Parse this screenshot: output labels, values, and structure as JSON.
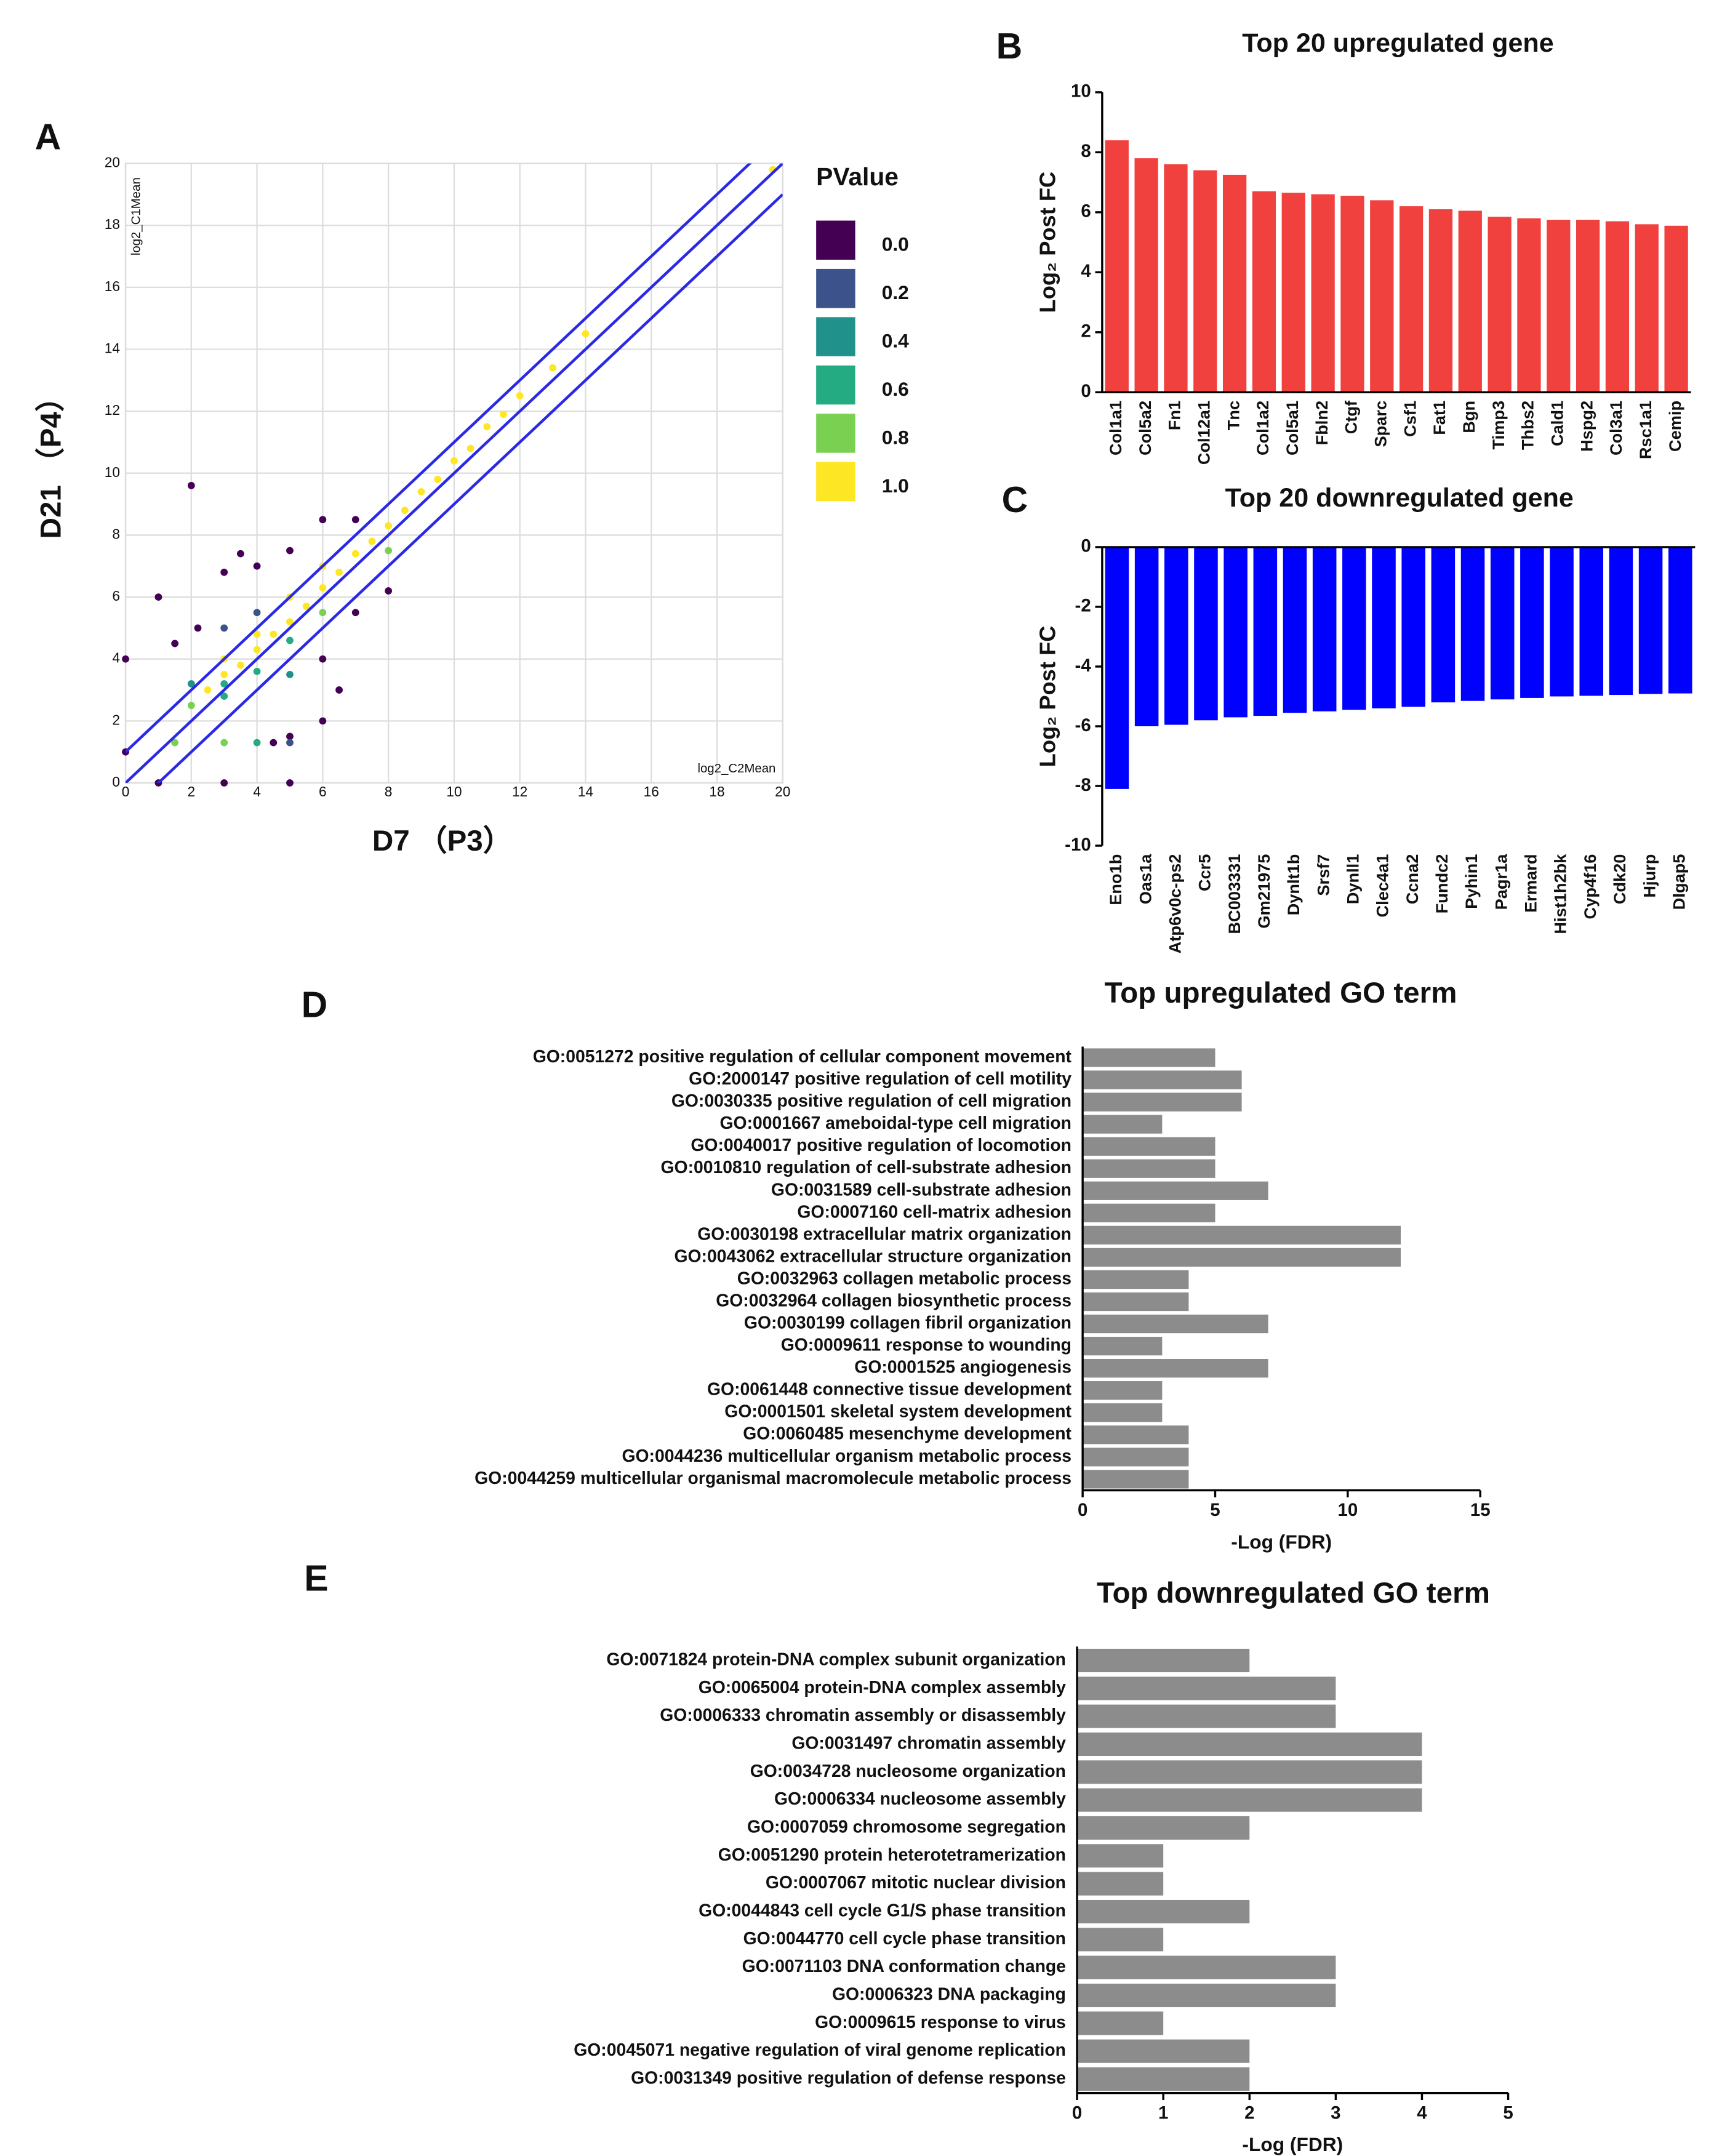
{
  "chart_data": [
    {
      "type": "scatter",
      "panel": "A",
      "x_label": "D7 （P3）",
      "y_label": "D21 （P4）",
      "inner_x_label": "log2_C2Mean",
      "inner_y_label": "log2_C1Mean",
      "xlim": [
        0,
        20
      ],
      "ylim": [
        0,
        20
      ],
      "xticks": [
        0,
        2,
        4,
        6,
        8,
        10,
        12,
        14,
        16,
        18,
        20
      ],
      "yticks": [
        0,
        2,
        4,
        6,
        8,
        10,
        12,
        14,
        16,
        18,
        20
      ],
      "grid": true,
      "reference_lines": [
        {
          "offset": 1,
          "color": "#2a2ae6"
        },
        {
          "offset": 0,
          "color": "#2a2ae6"
        },
        {
          "offset": -1,
          "color": "#2a2ae6"
        }
      ],
      "colorbar": {
        "title": "PValue",
        "ticks": [
          {
            "value": 0,
            "label": "0.0"
          },
          0.2,
          0.4,
          0.6,
          0.8,
          {
            "value": 1,
            "label": "1.0"
          }
        ],
        "colors": [
          "#440154",
          "#3b528b",
          "#21918c",
          "#25ab82",
          "#7ad151",
          "#fde725"
        ]
      },
      "series": [
        {
          "x": [
            3,
            3.5,
            4,
            4.5,
            5,
            5.5,
            6,
            6.5,
            7,
            7.5,
            8,
            8.5,
            9,
            9.5,
            10,
            10.5,
            11,
            11.5,
            12,
            13,
            14,
            19.7,
            4,
            5,
            6,
            3,
            2.5,
            3,
            4,
            5,
            6,
            2,
            8,
            3,
            2,
            1,
            2.2,
            3,
            4,
            5,
            6,
            6.5,
            7,
            5,
            6,
            4.5,
            3.5,
            1.5,
            6,
            0,
            0,
            7,
            8,
            2,
            4,
            5,
            3,
            1.5,
            3,
            4,
            5,
            1,
            3,
            5
          ],
          "y": [
            3.5,
            3.8,
            4.3,
            4.8,
            5.2,
            5.7,
            6.3,
            6.8,
            7.4,
            7.8,
            8.3,
            8.8,
            9.4,
            9.8,
            10.4,
            10.8,
            11.5,
            11.9,
            12.5,
            13.4,
            14.5,
            19.8,
            4.8,
            6,
            7,
            4,
            3,
            2.8,
            3.6,
            4.6,
            5.5,
            2.5,
            7.5,
            3.2,
            9.6,
            6,
            5,
            6.8,
            7,
            7.5,
            4,
            3,
            8.5,
            1.5,
            2,
            1.3,
            7.4,
            4.5,
            8.5,
            4,
            1,
            5.5,
            6.2,
            3.2,
            5.5,
            3.5,
            5,
            1.3,
            1.3,
            1.3,
            1.3,
            0,
            0,
            0
          ],
          "pvalue": [
            1,
            1,
            1,
            1,
            1,
            1,
            1,
            1,
            1,
            1,
            1,
            1,
            1,
            1,
            1,
            1,
            1,
            1,
            1,
            1,
            1,
            1,
            1,
            1,
            1,
            1,
            1,
            0.6,
            0.6,
            0.6,
            0.8,
            0.8,
            0.8,
            0.6,
            0,
            0,
            0,
            0,
            0,
            0,
            0,
            0,
            0,
            0,
            0,
            0,
            0,
            0,
            0,
            0,
            0,
            0,
            0,
            0.4,
            0.2,
            0.4,
            0.2,
            0.8,
            0.8,
            0.6,
            0.2,
            0,
            0,
            0
          ]
        }
      ]
    },
    {
      "type": "bar",
      "panel": "B",
      "title": "Top 20 upregulated gene",
      "y_label": "Log₂ Post FC",
      "color": "#f0413f",
      "categories": [
        "Col1a1",
        "Col5a2",
        "Fn1",
        "Col12a1",
        "Tnc",
        "Col1a2",
        "Col5a1",
        "Fbln2",
        "Ctgf",
        "Sparc",
        "Csf1",
        "Fat1",
        "Bgn",
        "Timp3",
        "Thbs2",
        "Cald1",
        "Hspg2",
        "Col3a1",
        "Rsc1a1",
        "Cemip"
      ],
      "values": [
        8.4,
        7.8,
        7.6,
        7.4,
        7.25,
        6.7,
        6.65,
        6.6,
        6.55,
        6.4,
        6.2,
        6.1,
        6.05,
        5.85,
        5.8,
        5.75,
        5.75,
        5.7,
        5.6,
        5.55
      ],
      "ylim": [
        0,
        10
      ],
      "yticks": [
        0,
        2,
        4,
        6,
        8,
        10
      ]
    },
    {
      "type": "bar",
      "panel": "C",
      "title": "Top 20 downregulated gene",
      "y_label": "Log₂ Post FC",
      "color": "#0000ff",
      "categories": [
        "Eno1b",
        "Oas1a",
        "Atp6v0c-ps2",
        "Ccr5",
        "BC003331",
        "Gm21975",
        "Dynlt1b",
        "Srsf7",
        "Dynll1",
        "Clec4a1",
        "Ccna2",
        "Fundc2",
        "Pyhin1",
        "Pagr1a",
        "Ermard",
        "Hist1h2bk",
        "Cyp4f16",
        "Cdk20",
        "Hjurp",
        "Dlgap5"
      ],
      "values": [
        -8.1,
        -6.0,
        -5.95,
        -5.8,
        -5.7,
        -5.65,
        -5.55,
        -5.5,
        -5.45,
        -5.4,
        -5.35,
        -5.2,
        -5.15,
        -5.1,
        -5.05,
        -5.0,
        -4.98,
        -4.95,
        -4.92,
        -4.9
      ],
      "ylim": [
        -10,
        0
      ],
      "yticks": [
        -10,
        -8,
        -6,
        -4,
        -2,
        0
      ]
    },
    {
      "type": "hbar",
      "panel": "D",
      "title": "Top upregulated GO term",
      "x_label": "-Log (FDR)",
      "color": "#8c8c8c",
      "categories": [
        "GO:0051272 positive regulation of cellular component movement",
        "GO:2000147 positive regulation of cell motility",
        "GO:0030335 positive regulation of cell migration",
        "GO:0001667 ameboidal-type cell migration",
        "GO:0040017 positive regulation of locomotion",
        "GO:0010810 regulation of cell-substrate adhesion",
        "GO:0031589 cell-substrate adhesion",
        "GO:0007160 cell-matrix adhesion",
        "GO:0030198 extracellular matrix organization",
        "GO:0043062 extracellular structure organization",
        "GO:0032963 collagen metabolic process",
        "GO:0032964 collagen biosynthetic process",
        "GO:0030199 collagen fibril organization",
        "GO:0009611 response to wounding",
        "GO:0001525 angiogenesis",
        "GO:0061448 connective tissue development",
        "GO:0001501 skeletal system development",
        "GO:0060485 mesenchyme development",
        "GO:0044236 multicellular organism metabolic process",
        "GO:0044259 multicellular organismal macromolecule metabolic process"
      ],
      "values": [
        5,
        6,
        6,
        3,
        5,
        5,
        7,
        5,
        12,
        12,
        4,
        4,
        7,
        3,
        7,
        3,
        3,
        4,
        4,
        4
      ],
      "xlim": [
        0,
        15
      ],
      "xticks": [
        0,
        5,
        10,
        15
      ]
    },
    {
      "type": "hbar",
      "panel": "E",
      "title": "Top downregulated GO term",
      "x_label": "-Log (FDR)",
      "color": "#8c8c8c",
      "categories": [
        "GO:0071824 protein-DNA complex subunit organization",
        "GO:0065004 protein-DNA complex assembly",
        "GO:0006333 chromatin assembly or disassembly",
        "GO:0031497 chromatin assembly",
        "GO:0034728 nucleosome organization",
        "GO:0006334 nucleosome assembly",
        "GO:0007059 chromosome segregation",
        "GO:0051290 protein heterotetramerization",
        "GO:0007067 mitotic nuclear division",
        "GO:0044843 cell cycle G1/S phase transition",
        "GO:0044770 cell cycle phase transition",
        "GO:0071103 DNA conformation change",
        "GO:0006323 DNA packaging",
        "GO:0009615 response to virus",
        "GO:0045071 negative regulation of viral genome replication",
        "GO:0031349 positive regulation of defense response"
      ],
      "values": [
        2,
        3,
        3,
        4,
        4,
        4,
        2,
        1,
        1,
        2,
        1,
        3,
        3,
        1,
        2,
        2
      ],
      "xlim": [
        0,
        5
      ],
      "xticks": [
        0,
        1,
        2,
        3,
        4,
        5
      ]
    }
  ]
}
